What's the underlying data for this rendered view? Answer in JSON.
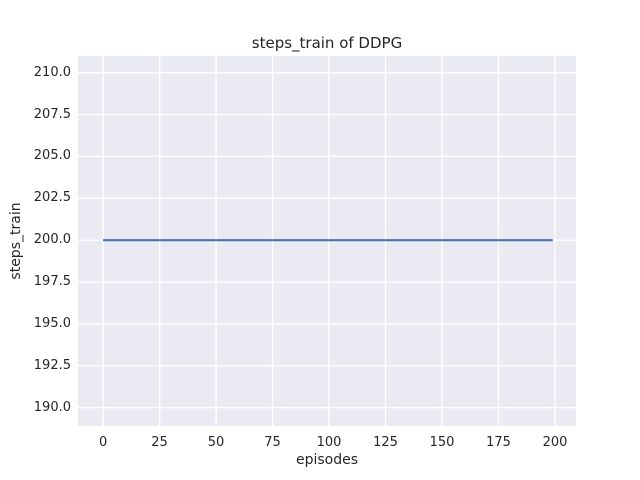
{
  "chart_data": {
    "type": "line",
    "title": "steps_train of DDPG",
    "xlabel": "episodes",
    "ylabel": "steps_train",
    "series": [
      {
        "name": "steps_train",
        "x": [
          0,
          199
        ],
        "y": [
          200,
          200
        ],
        "color": "#4C72B0",
        "description": "constant value 200 for all episodes 0 through 199"
      }
    ],
    "xlim": [
      -11.1,
      209.3
    ],
    "ylim": [
      188.9,
      211.0
    ],
    "xticks": [
      0,
      25,
      50,
      75,
      100,
      125,
      150,
      175,
      200
    ],
    "xtick_labels": [
      "0",
      "25",
      "50",
      "75",
      "100",
      "125",
      "150",
      "175",
      "200"
    ],
    "yticks": [
      210.0,
      207.5,
      205.0,
      202.5,
      200.0,
      197.5,
      195.0,
      192.5,
      190.0
    ],
    "ytick_labels": [
      "210.0",
      "207.5",
      "205.0",
      "202.5",
      "200.0",
      "197.5",
      "195.0",
      "192.5",
      "190.0"
    ],
    "grid": true,
    "legend": "none",
    "style": {
      "axes_bg": "#EAEAF2",
      "grid_color": "#FFFFFF",
      "text_color": "#262626",
      "figure_bg": "#FFFFFF"
    }
  }
}
